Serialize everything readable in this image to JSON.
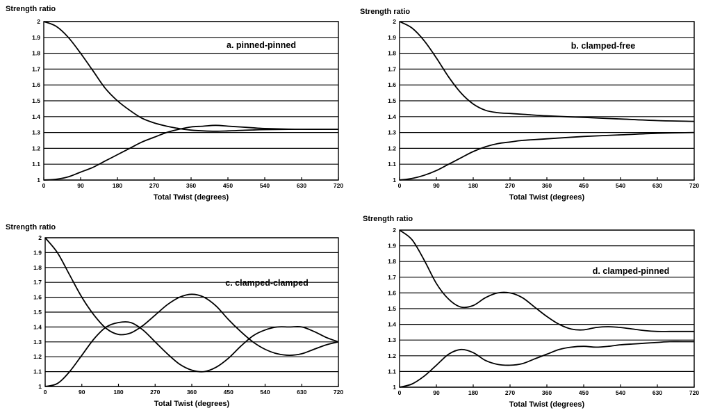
{
  "chart_data": [
    {
      "type": "line",
      "title": "a. pinned-pinned",
      "xlabel": "Total Twist (degrees)",
      "ylabel": "Strength ratio",
      "xlim": [
        0,
        720
      ],
      "ylim": [
        1,
        2
      ],
      "xticks": [
        0,
        90,
        180,
        270,
        360,
        450,
        540,
        630,
        720
      ],
      "yticks": [
        1,
        1.1,
        1.2,
        1.3,
        1.4,
        1.5,
        1.6,
        1.7,
        1.8,
        1.9,
        2
      ],
      "grid": "horizontal",
      "series": [
        {
          "x": [
            0,
            30,
            60,
            90,
            120,
            150,
            180,
            210,
            240,
            270,
            300,
            330,
            360,
            390,
            420,
            450,
            480,
            510,
            540,
            630,
            720
          ],
          "y": [
            2.0,
            1.97,
            1.9,
            1.8,
            1.69,
            1.58,
            1.5,
            1.44,
            1.39,
            1.36,
            1.34,
            1.325,
            1.315,
            1.31,
            1.308,
            1.31,
            1.313,
            1.316,
            1.318,
            1.32,
            1.32
          ]
        },
        {
          "x": [
            0,
            30,
            60,
            90,
            120,
            150,
            180,
            210,
            240,
            270,
            300,
            330,
            360,
            390,
            420,
            450,
            480,
            510,
            540,
            630,
            720
          ],
          "y": [
            1.0,
            1.005,
            1.02,
            1.05,
            1.08,
            1.12,
            1.16,
            1.2,
            1.24,
            1.27,
            1.3,
            1.32,
            1.335,
            1.34,
            1.345,
            1.34,
            1.335,
            1.33,
            1.325,
            1.32,
            1.32
          ]
        }
      ]
    },
    {
      "type": "line",
      "title": "b. clamped-free",
      "xlabel": "Total Twist (degrees)",
      "ylabel": "Strength ratio",
      "xlim": [
        0,
        720
      ],
      "ylim": [
        1,
        2
      ],
      "xticks": [
        0,
        90,
        180,
        270,
        360,
        450,
        540,
        630,
        720
      ],
      "yticks": [
        1,
        1.1,
        1.2,
        1.3,
        1.4,
        1.5,
        1.6,
        1.7,
        1.8,
        1.9,
        2
      ],
      "grid": "horizontal",
      "series": [
        {
          "x": [
            0,
            30,
            60,
            90,
            120,
            150,
            180,
            210,
            240,
            270,
            300,
            360,
            450,
            540,
            630,
            720
          ],
          "y": [
            2.0,
            1.96,
            1.88,
            1.77,
            1.65,
            1.55,
            1.48,
            1.44,
            1.425,
            1.42,
            1.415,
            1.405,
            1.395,
            1.385,
            1.375,
            1.37
          ]
        },
        {
          "x": [
            0,
            30,
            60,
            90,
            120,
            150,
            180,
            210,
            240,
            270,
            300,
            360,
            450,
            540,
            630,
            720
          ],
          "y": [
            1.0,
            1.01,
            1.03,
            1.06,
            1.1,
            1.14,
            1.18,
            1.21,
            1.23,
            1.24,
            1.25,
            1.26,
            1.275,
            1.285,
            1.295,
            1.3
          ]
        }
      ]
    },
    {
      "type": "line",
      "title": "c. clamped-clamped",
      "xlabel": "Total Twist (degrees)",
      "ylabel": "Strength ratio",
      "xlim": [
        0,
        720
      ],
      "ylim": [
        1,
        2
      ],
      "xticks": [
        0,
        90,
        180,
        270,
        360,
        450,
        540,
        630,
        720
      ],
      "yticks": [
        1,
        1.1,
        1.2,
        1.3,
        1.4,
        1.5,
        1.6,
        1.7,
        1.8,
        1.9,
        2
      ],
      "grid": "horizontal",
      "series": [
        {
          "x": [
            0,
            30,
            60,
            90,
            120,
            150,
            180,
            210,
            240,
            270,
            300,
            330,
            360,
            390,
            420,
            450,
            480,
            510,
            540,
            570,
            600,
            630,
            660,
            690,
            720
          ],
          "y": [
            2.0,
            1.9,
            1.75,
            1.6,
            1.48,
            1.39,
            1.35,
            1.36,
            1.41,
            1.48,
            1.55,
            1.6,
            1.62,
            1.6,
            1.54,
            1.45,
            1.37,
            1.3,
            1.25,
            1.22,
            1.21,
            1.22,
            1.25,
            1.28,
            1.3
          ]
        },
        {
          "x": [
            0,
            30,
            60,
            90,
            120,
            150,
            180,
            210,
            240,
            270,
            300,
            330,
            360,
            390,
            420,
            450,
            480,
            510,
            540,
            570,
            600,
            630,
            660,
            690,
            720
          ],
          "y": [
            1.0,
            1.02,
            1.1,
            1.21,
            1.32,
            1.4,
            1.43,
            1.43,
            1.38,
            1.3,
            1.22,
            1.15,
            1.11,
            1.1,
            1.13,
            1.19,
            1.27,
            1.34,
            1.38,
            1.4,
            1.4,
            1.4,
            1.37,
            1.33,
            1.3
          ]
        }
      ]
    },
    {
      "type": "line",
      "title": "d. clamped-pinned",
      "xlabel": "Total Twist (degrees)",
      "ylabel": "Strength ratio",
      "xlim": [
        0,
        720
      ],
      "ylim": [
        1,
        2
      ],
      "xticks": [
        0,
        90,
        180,
        270,
        360,
        450,
        540,
        630,
        720
      ],
      "yticks": [
        1,
        1.1,
        1.2,
        1.3,
        1.4,
        1.5,
        1.6,
        1.7,
        1.8,
        1.9,
        2
      ],
      "grid": "horizontal",
      "series": [
        {
          "x": [
            0,
            30,
            60,
            90,
            120,
            150,
            180,
            210,
            240,
            270,
            300,
            330,
            360,
            390,
            420,
            450,
            480,
            510,
            540,
            570,
            600,
            630,
            660,
            690,
            720
          ],
          "y": [
            2.0,
            1.94,
            1.81,
            1.66,
            1.56,
            1.51,
            1.52,
            1.57,
            1.6,
            1.6,
            1.57,
            1.51,
            1.45,
            1.4,
            1.37,
            1.365,
            1.38,
            1.385,
            1.38,
            1.37,
            1.36,
            1.355,
            1.355,
            1.355,
            1.355
          ]
        },
        {
          "x": [
            0,
            30,
            60,
            90,
            120,
            150,
            180,
            210,
            240,
            270,
            300,
            330,
            360,
            390,
            420,
            450,
            480,
            510,
            540,
            570,
            600,
            630,
            660,
            690,
            720
          ],
          "y": [
            1.0,
            1.02,
            1.07,
            1.14,
            1.21,
            1.24,
            1.22,
            1.17,
            1.145,
            1.14,
            1.15,
            1.18,
            1.21,
            1.24,
            1.255,
            1.26,
            1.255,
            1.26,
            1.27,
            1.275,
            1.28,
            1.285,
            1.29,
            1.29,
            1.29
          ]
        }
      ]
    }
  ]
}
